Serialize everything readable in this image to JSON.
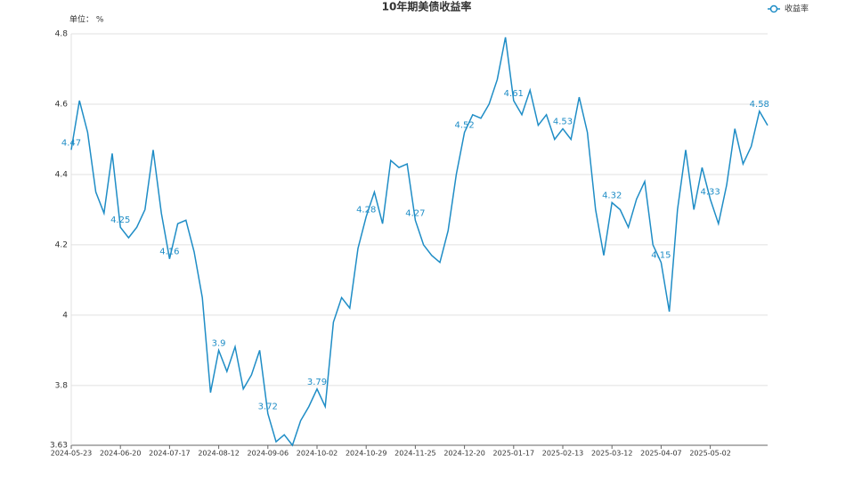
{
  "chart_data": {
    "type": "line",
    "title": "10年期美债收益率",
    "y_unit_label": "单位： %",
    "categories": [
      "2024-05-23",
      null,
      null,
      null,
      null,
      null,
      "2024-06-20",
      null,
      null,
      null,
      null,
      null,
      "2024-07-17",
      null,
      null,
      null,
      null,
      null,
      "2024-08-12",
      null,
      null,
      null,
      null,
      null,
      "2024-09-06",
      null,
      null,
      null,
      null,
      null,
      "2024-10-02",
      null,
      null,
      null,
      null,
      null,
      "2024-10-29",
      null,
      null,
      null,
      null,
      null,
      "2024-11-25",
      null,
      null,
      null,
      null,
      null,
      "2024-12-20",
      null,
      null,
      null,
      null,
      null,
      "2025-01-17",
      null,
      null,
      null,
      null,
      null,
      "2025-02-13",
      null,
      null,
      null,
      null,
      null,
      "2025-03-12",
      null,
      null,
      null,
      null,
      null,
      "2025-04-07",
      null,
      null,
      null,
      null,
      null,
      "2025-05-02",
      null,
      null,
      null,
      null,
      null,
      null,
      null
    ],
    "series": [
      {
        "name": "收益率",
        "color": "#1f8dc6",
        "values": [
          4.47,
          4.61,
          4.52,
          4.35,
          4.29,
          4.46,
          4.25,
          4.22,
          4.25,
          4.3,
          4.47,
          4.29,
          4.16,
          4.26,
          4.27,
          4.18,
          4.05,
          3.78,
          3.9,
          3.84,
          3.91,
          3.79,
          3.83,
          3.9,
          3.72,
          3.64,
          3.66,
          3.63,
          3.7,
          3.74,
          3.79,
          3.74,
          3.98,
          4.05,
          4.02,
          4.19,
          4.28,
          4.35,
          4.26,
          4.44,
          4.42,
          4.43,
          4.27,
          4.2,
          4.17,
          4.15,
          4.24,
          4.4,
          4.52,
          4.57,
          4.56,
          4.6,
          4.67,
          4.79,
          4.61,
          4.57,
          4.64,
          4.54,
          4.57,
          4.5,
          4.53,
          4.5,
          4.62,
          4.52,
          4.3,
          4.17,
          4.32,
          4.3,
          4.25,
          4.33,
          4.38,
          4.2,
          4.15,
          4.01,
          4.3,
          4.47,
          4.3,
          4.42,
          4.33,
          4.26,
          4.37,
          4.53,
          4.43,
          4.48,
          4.58,
          4.54
        ]
      }
    ],
    "data_label_every": 6,
    "ylim": [
      3.63,
      4.8
    ],
    "yticks": [
      3.63,
      3.8,
      4,
      4.2,
      4.4,
      4.6,
      4.8
    ],
    "grid": true,
    "legend": "top-right"
  }
}
